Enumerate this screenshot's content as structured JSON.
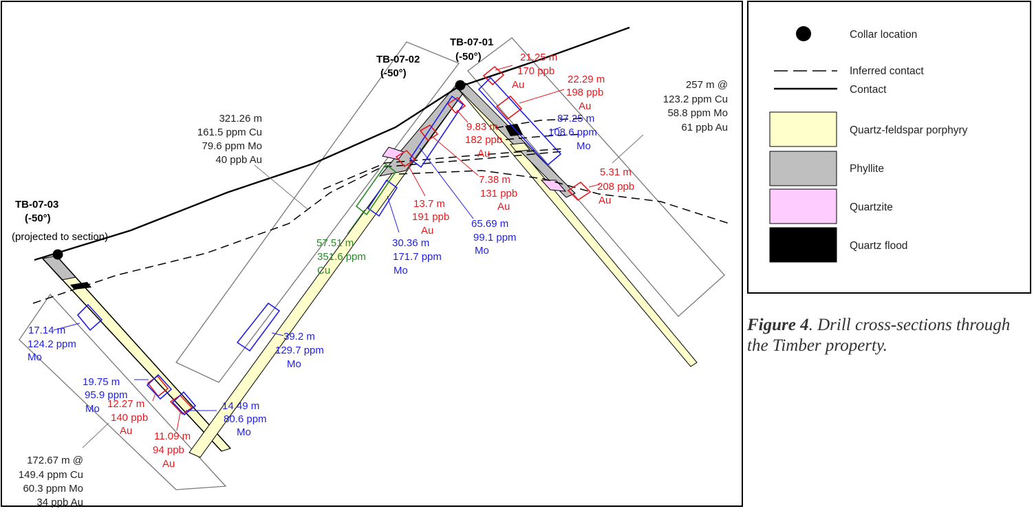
{
  "holes": [
    {
      "id": "TB-07-03",
      "dip": "(-50°)",
      "note": "(projected to section)"
    },
    {
      "id": "TB-07-02",
      "dip": "(-50°)"
    },
    {
      "id": "TB-07-01",
      "dip": "(-50°)"
    }
  ],
  "summaries": {
    "tb0703": [
      "172.67 m @",
      "149.4 ppm Cu",
      "60.3 ppm Mo",
      "34 ppb Au"
    ],
    "tb0702": [
      "321.26 m",
      "161.5 ppm Cu",
      "79.6 ppm Mo",
      "40 ppb Au"
    ],
    "tb0701": [
      "257 m @",
      "123.2 ppm Cu",
      "58.8 ppm Mo",
      "61 ppb Au"
    ]
  },
  "intervals": {
    "a1": [
      "21.25 m",
      "170 ppb",
      "Au"
    ],
    "a2": [
      "22.29 m",
      "198 ppb",
      "Au"
    ],
    "a3": [
      "9.83 m",
      "182 ppb",
      "Au"
    ],
    "a4": [
      "7.38 m",
      "131 ppb",
      "Au"
    ],
    "a5": [
      "13.7 m",
      "191 ppb",
      "Au"
    ],
    "a6": [
      "5.31 m",
      "208 ppb",
      "Au"
    ],
    "a7": [
      "12.27 m",
      "140 ppb",
      "Au"
    ],
    "a8": [
      "11.09 m",
      "94 ppb",
      "Au"
    ],
    "m1": [
      "87.25 m",
      "108.6 ppm",
      "Mo"
    ],
    "m2": [
      "65.69 m",
      "99.1 ppm",
      "Mo"
    ],
    "m3": [
      "30.36 m",
      "171.7 ppm",
      "Mo"
    ],
    "m4": [
      "39.2 m",
      "129.7 ppm",
      "Mo"
    ],
    "m5": [
      "17.14 m",
      "124.2 ppm",
      "Mo"
    ],
    "m6": [
      "19.75 m",
      "95.9 ppm",
      "Mo"
    ],
    "m7": [
      "14.49 m",
      "80.6 ppm",
      "Mo"
    ],
    "c1": [
      "57.51 m",
      "351.6 ppm",
      "Cu"
    ]
  },
  "legend": {
    "items": [
      {
        "label": "Collar location"
      },
      {
        "label": "Inferred contact"
      },
      {
        "label": "Contact"
      },
      {
        "label": "Quartz-feldspar porphyry",
        "color": "#ffffcc"
      },
      {
        "label": "Phyllite",
        "color": "#bfbfbf"
      },
      {
        "label": "Quartzite",
        "color": "#ffccff"
      },
      {
        "label": "Quartz flood",
        "color": "#000000"
      }
    ]
  },
  "caption": {
    "figure": "Figure 4",
    "text": ".  Drill cross-sections through the Timber property."
  },
  "colors": {
    "au": "#e8191d",
    "mo": "#1f1fe6",
    "cu": "#2a8a2a",
    "porphyry": "#ffffcc",
    "phyllite": "#bfbfbf",
    "quartzite": "#ffccff",
    "quartz_flood": "#000000"
  }
}
